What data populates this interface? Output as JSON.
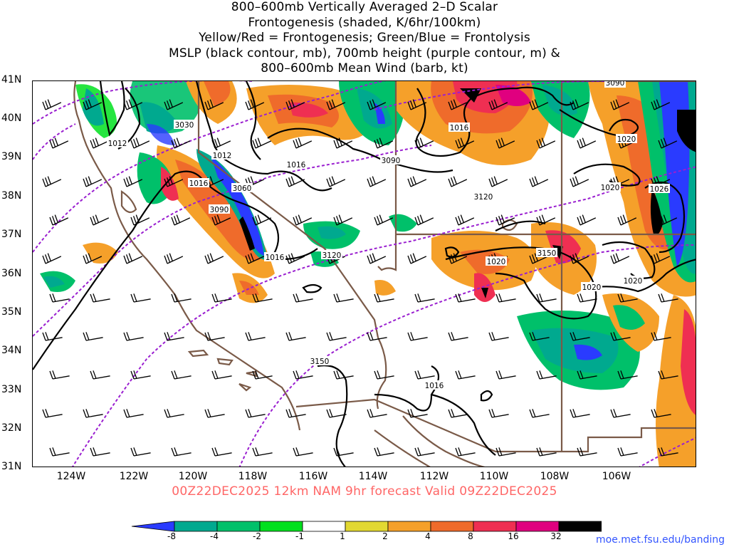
{
  "title": {
    "lines": [
      "800–600mb Vertically Averaged 2–D Scalar",
      "Frontogenesis (shaded, K/6hr/100km)",
      "Yellow/Red = Frontogenesis;  Green/Blue = Frontolysis",
      "MSLP (black contour, mb), 700mb height (purple contour, m) &",
      "800–600mb Mean Wind (barb, kt)"
    ]
  },
  "valid": "00Z22DEC2025 12km NAM 9hr forecast Valid 09Z22DEC2025",
  "credit": "moe.met.fsu.edu/banding",
  "axes": {
    "lat_labels": [
      "41N",
      "40N",
      "39N",
      "38N",
      "37N",
      "36N",
      "35N",
      "34N",
      "33N",
      "32N",
      "31N"
    ],
    "lon_labels": [
      "124W",
      "122W",
      "120W",
      "118W",
      "116W",
      "114W",
      "112W",
      "110W",
      "108W",
      "106W"
    ]
  },
  "contour_labels": {
    "mslp": [
      "1012",
      "1012",
      "1016",
      "1016",
      "1016",
      "1016",
      "1016",
      "1020",
      "1020",
      "1020",
      "1020",
      "1020",
      "1020",
      "1026",
      "1016"
    ],
    "height": [
      "3030",
      "3060",
      "3090",
      "3090",
      "3120",
      "3120",
      "3150",
      "3150",
      "3090"
    ]
  },
  "colorbar": {
    "labels": [
      "-8",
      "-4",
      "-2",
      "-1",
      "1",
      "2",
      "4",
      "8",
      "16",
      "32"
    ],
    "colors": [
      "#2a3bff",
      "#00a98f",
      "#00c06a",
      "#00e01e",
      "#ffffff",
      "#e2d832",
      "#f5a02a",
      "#ef6b2b",
      "#ef2f52",
      "#e0007f",
      "#000000",
      "#aaaaaa"
    ]
  },
  "colors": {
    "mslp_contour": "#000000",
    "height_contour": "#9a1fd0",
    "borders": "#7a5a48",
    "valid_text": "#ff6666",
    "credit_text": "#3355ff"
  }
}
